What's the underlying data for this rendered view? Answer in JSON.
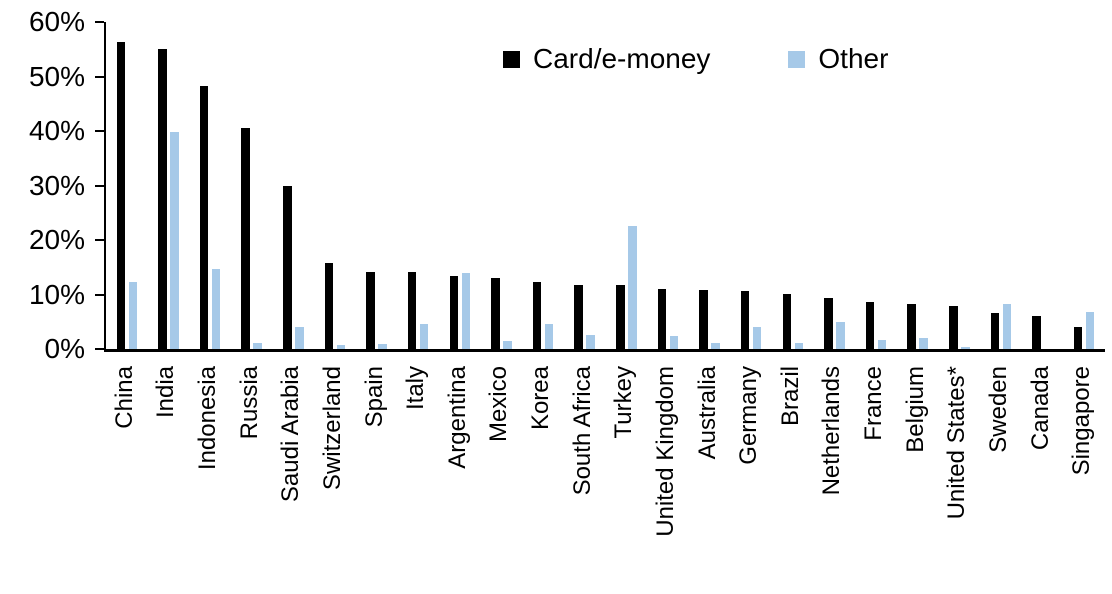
{
  "chart_data": {
    "type": "bar",
    "title": "",
    "xlabel": "",
    "ylabel": "",
    "ylim": [
      0,
      60
    ],
    "yticks": [
      0,
      10,
      20,
      30,
      40,
      50,
      60
    ],
    "ytick_suffix": "%",
    "grid": false,
    "legend_position": "top-center",
    "categories": [
      "China",
      "India",
      "Indonesia",
      "Russia",
      "Saudi Arabia",
      "Switzerland",
      "Spain",
      "Italy",
      "Argentina",
      "Mexico",
      "Korea",
      "South Africa",
      "Turkey",
      "United Kingdom",
      "Australia",
      "Germany",
      "Brazil",
      "Netherlands",
      "France",
      "Belgium",
      "United States*",
      "Sweden",
      "Canada",
      "Singapore"
    ],
    "series": [
      {
        "name": "Card/e-money",
        "color": "#000000",
        "values": [
          56.3,
          55.0,
          48.3,
          40.5,
          29.9,
          15.7,
          14.2,
          14.1,
          13.4,
          13.0,
          12.3,
          11.8,
          11.7,
          11.1,
          10.9,
          10.7,
          10.1,
          9.3,
          8.7,
          8.2,
          7.9,
          6.6,
          6.0,
          4.0
        ]
      },
      {
        "name": "Other",
        "color": "#A6C9E8",
        "values": [
          12.3,
          39.8,
          14.6,
          1.1,
          4.0,
          0.8,
          1.0,
          4.6,
          13.9,
          1.4,
          4.6,
          2.5,
          22.6,
          2.4,
          1.1,
          4.0,
          1.2,
          4.9,
          1.6,
          2.1,
          0.4,
          8.2,
          0.0,
          6.8
        ]
      }
    ]
  }
}
